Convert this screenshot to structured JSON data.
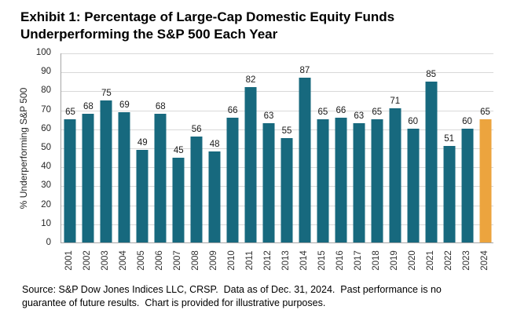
{
  "title": {
    "line1": "Exhibit 1: Percentage of Large-Cap Domestic Equity Funds",
    "line2": "Underperforming the S&P 500 Each Year"
  },
  "chart_data": {
    "type": "bar",
    "title": "Exhibit 1: Percentage of Large-Cap Domestic Equity Funds Underperforming the S&P 500 Each Year",
    "categories": [
      "2001",
      "2002",
      "2003",
      "2004",
      "2005",
      "2006",
      "2007",
      "2008",
      "2009",
      "2010",
      "2011",
      "2012",
      "2013",
      "2014",
      "2015",
      "2016",
      "2017",
      "2018",
      "2019",
      "2020",
      "2021",
      "2022",
      "2023",
      "2024"
    ],
    "values": [
      65,
      68,
      75,
      69,
      49,
      68,
      45,
      56,
      48,
      66,
      82,
      63,
      55,
      87,
      65,
      66,
      63,
      65,
      71,
      60,
      85,
      51,
      60,
      65
    ],
    "xlabel": "",
    "ylabel": "% Underperforming S&P 500",
    "ylim": [
      0,
      100
    ],
    "ytick_step": 10,
    "grid": true,
    "legend": "none",
    "value_labels": true,
    "bar_color": "#17697E",
    "highlight_index": 23,
    "highlight_color": "#ECA43E",
    "gridline_color": "#d9d9d9",
    "axis_color": "#a6a6a6"
  },
  "footer": {
    "line1": "Source: S&P Dow Jones Indices LLC, CRSP.  Data as of Dec. 31, 2024.  Past performance is no",
    "line2": "guarantee of future results.  Chart is provided for illustrative purposes."
  }
}
